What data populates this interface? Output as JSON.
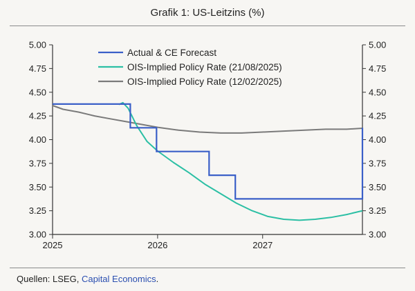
{
  "header": {
    "title": "Grafik 1: US-Leitzins (%)"
  },
  "footer": {
    "source_prefix": "Quellen: LSEG, ",
    "source_link": "Capital Economics",
    "source_suffix": "."
  },
  "colors": {
    "actual": "#3a5fc8",
    "ois_aug": "#2bbfa4",
    "ois_feb": "#7a7a7a",
    "axis": "#333333"
  },
  "chart_data": {
    "type": "line",
    "title": "Grafik 1: US-Leitzins (%)",
    "xlabel": "",
    "ylabel": "",
    "xlim": [
      2025.0,
      2027.95
    ],
    "ylim": [
      3.0,
      5.0
    ],
    "x_ticks": [
      {
        "value": 2025.0,
        "label": "2025"
      },
      {
        "value": 2026.0,
        "label": "2026"
      },
      {
        "value": 2027.0,
        "label": "2027"
      }
    ],
    "y_ticks": [
      3.0,
      3.25,
      3.5,
      3.75,
      4.0,
      4.25,
      4.5,
      4.75,
      5.0
    ],
    "y_tick_labels": [
      "3.00",
      "3.25",
      "3.50",
      "3.75",
      "4.00",
      "4.25",
      "4.50",
      "4.75",
      "5.00"
    ],
    "legend_position": "top-left",
    "series": [
      {
        "name": "Actual & CE Forecast",
        "style": "step",
        "x": [
          2025.0,
          2025.74,
          2025.74,
          2025.99,
          2025.99,
          2026.49,
          2026.49,
          2026.74,
          2026.74,
          2027.95,
          2027.95
        ],
        "y": [
          4.375,
          4.375,
          4.125,
          4.125,
          3.875,
          3.875,
          3.625,
          3.625,
          3.375,
          3.375,
          4.125
        ]
      },
      {
        "name": "OIS-Implied Policy Rate (21/08/2025)",
        "style": "line",
        "x": [
          2025.63,
          2025.67,
          2025.72,
          2025.8,
          2025.9,
          2026.0,
          2026.15,
          2026.3,
          2026.45,
          2026.6,
          2026.75,
          2026.9,
          2027.05,
          2027.2,
          2027.35,
          2027.5,
          2027.65,
          2027.8,
          2027.95
        ],
        "y": [
          4.37,
          4.39,
          4.33,
          4.15,
          3.98,
          3.88,
          3.76,
          3.65,
          3.53,
          3.43,
          3.33,
          3.25,
          3.19,
          3.16,
          3.15,
          3.16,
          3.18,
          3.21,
          3.25
        ]
      },
      {
        "name": "OIS-Implied Policy Rate (12/02/2025)",
        "style": "line",
        "x": [
          2025.0,
          2025.1,
          2025.25,
          2025.4,
          2025.55,
          2025.7,
          2025.85,
          2026.0,
          2026.2,
          2026.4,
          2026.6,
          2026.8,
          2027.0,
          2027.2,
          2027.4,
          2027.6,
          2027.8,
          2027.95
        ],
        "y": [
          4.36,
          4.32,
          4.29,
          4.25,
          4.22,
          4.19,
          4.16,
          4.13,
          4.1,
          4.08,
          4.07,
          4.07,
          4.08,
          4.09,
          4.1,
          4.11,
          4.11,
          4.12
        ]
      }
    ]
  }
}
